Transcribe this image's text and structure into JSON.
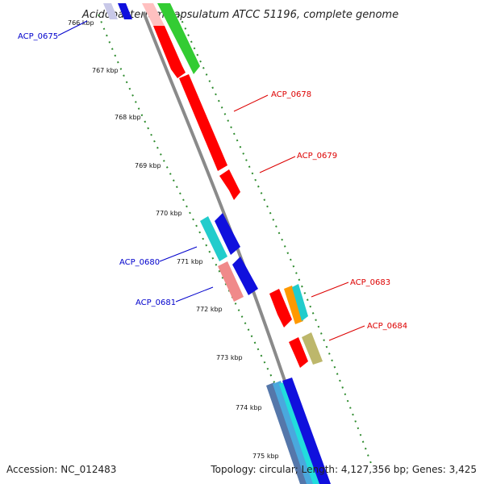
{
  "title": "Acidobacterium capsulatum ATCC 51196, complete genome",
  "footer": {
    "accession": "Accession: NC_012483",
    "summary": "Topology: circular; Length: 4,127,356 bp; Genes: 3,425"
  },
  "colors": {
    "backbone": "#8a8a8a",
    "ticks": "#2e8b2e",
    "label_forward": "#0000cc",
    "label_reverse": "#dd0000",
    "red": "#ff0000",
    "blue": "#1010dd",
    "green": "#33cc33",
    "cyan": "#22cccc",
    "pink": "#f08a8a",
    "orange": "#ff9900",
    "khaki": "#bdb76b",
    "lightblue": "#4aa8dd"
  },
  "kbp_ticks": [
    "766 kbp",
    "767 kbp",
    "768 kbp",
    "769 kbp",
    "770 kbp",
    "771 kbp",
    "772 kbp",
    "773 kbp",
    "774 kbp",
    "775 kbp"
  ],
  "gene_labels": [
    {
      "text": "ACP_0675",
      "strand": "forward"
    },
    {
      "text": "ACP_0678",
      "strand": "reverse"
    },
    {
      "text": "ACP_0679",
      "strand": "reverse"
    },
    {
      "text": "ACP_0680",
      "strand": "forward"
    },
    {
      "text": "ACP_0681",
      "strand": "forward"
    },
    {
      "text": "ACP_0683",
      "strand": "reverse"
    },
    {
      "text": "ACP_0684",
      "strand": "reverse"
    }
  ]
}
